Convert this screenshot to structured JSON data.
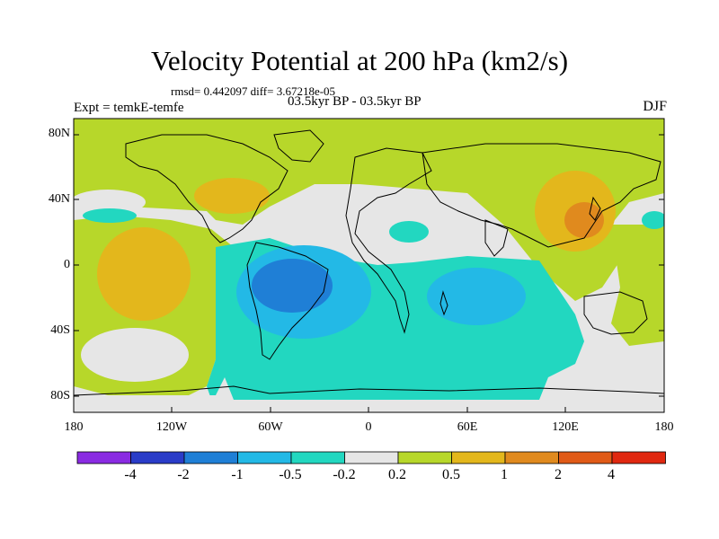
{
  "title": "Velocity Potential at 200 hPa (km2/s)",
  "stats": "rmsd= 0.442097 diff= 3.67218e-05",
  "experiment": "Expt = temkE-temfe",
  "period": "03.5kyr BP - 03.5kyr BP",
  "season": "DJF",
  "y_axis_labels": [
    "80N",
    "40N",
    "0",
    "40S",
    "80S"
  ],
  "x_axis_labels": [
    "180",
    "120W",
    "60W",
    "0",
    "60E",
    "120E",
    "180"
  ],
  "colorbar": {
    "labels": [
      "-4",
      "-2",
      "-1",
      "-0.5",
      "-0.2",
      "0.2",
      "0.5",
      "1",
      "2",
      "4"
    ],
    "colors": [
      "#8a2be2",
      "#2a3cc8",
      "#1f7fd6",
      "#23b9e6",
      "#22d7c0",
      "#e6e6e6",
      "#b7d72a",
      "#e3b71c",
      "#e08a1e",
      "#e05a17",
      "#e02810"
    ]
  },
  "colors": {
    "ocean_positive_weak": "#b7d72a",
    "neutral": "#e6e6e6",
    "negative_weak": "#22d7c0",
    "negative_mid": "#23b9e6",
    "negative_strong": "#1f7fd6",
    "positive_mid": "#e3b71c",
    "positive_strong": "#e08a1e",
    "positive_max": "#e05a17"
  }
}
